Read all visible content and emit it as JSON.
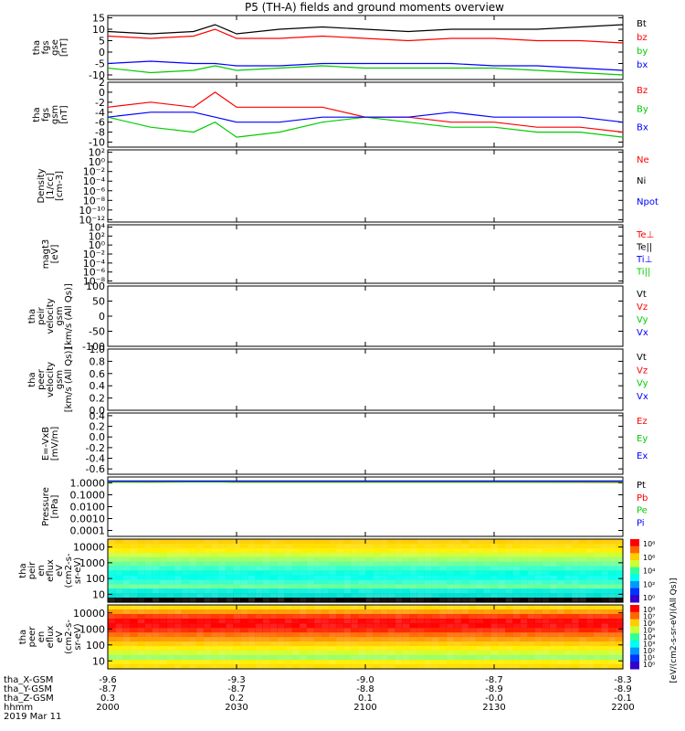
{
  "title": "P5 (TH-A) fields and ground moments overview",
  "colors": {
    "black": "#000000",
    "red": "#ff0000",
    "green": "#00cc00",
    "blue": "#0000ff"
  },
  "chart_data": [
    {
      "type": "line",
      "panel": "fgs_gse",
      "ylabel": [
        "tha",
        "fgs",
        "gse",
        "[nT]"
      ],
      "ylim": [
        -12,
        16
      ],
      "yticks": [
        "15",
        "10",
        "5",
        "0",
        "-5",
        "-10"
      ],
      "ytick_values": [
        15,
        10,
        5,
        0,
        -5,
        -10
      ],
      "series": [
        {
          "name": "Bt",
          "color": "#000000",
          "x": [
            2000,
            2010,
            2020,
            2025,
            2030,
            2040,
            2050,
            2100,
            2110,
            2120,
            2130,
            2140,
            2150,
            2200
          ],
          "values": [
            9,
            8,
            9,
            12,
            8,
            10,
            11,
            10,
            9,
            10,
            10,
            10,
            11,
            12
          ]
        },
        {
          "name": "bz",
          "color": "#ff0000",
          "x": [
            2000,
            2010,
            2020,
            2025,
            2030,
            2040,
            2050,
            2100,
            2110,
            2120,
            2130,
            2140,
            2150,
            2200
          ],
          "values": [
            7,
            6,
            7,
            10,
            6,
            6,
            7,
            6,
            5,
            6,
            6,
            5,
            5,
            4
          ]
        },
        {
          "name": "by",
          "color": "#00cc00",
          "x": [
            2000,
            2010,
            2020,
            2025,
            2030,
            2040,
            2050,
            2100,
            2110,
            2120,
            2130,
            2140,
            2150,
            2200
          ],
          "values": [
            -7,
            -9,
            -8,
            -6,
            -8,
            -7,
            -6,
            -7,
            -7,
            -7,
            -7,
            -8,
            -9,
            -10
          ]
        },
        {
          "name": "bx",
          "color": "#0000ff",
          "x": [
            2000,
            2010,
            2020,
            2025,
            2030,
            2040,
            2050,
            2100,
            2110,
            2120,
            2130,
            2140,
            2150,
            2200
          ],
          "values": [
            -5,
            -4,
            -5,
            -5,
            -6,
            -6,
            -5,
            -5,
            -5,
            -5,
            -6,
            -6,
            -7,
            -8
          ]
        }
      ]
    },
    {
      "type": "line",
      "panel": "fgs_gsm",
      "ylabel": [
        "tha",
        "fgs",
        "gsm",
        "[nT]"
      ],
      "ylim": [
        -11,
        2
      ],
      "yticks": [
        "2",
        "0",
        "-2",
        "-4",
        "-6",
        "-8",
        "-10"
      ],
      "ytick_values": [
        2,
        0,
        -2,
        -4,
        -6,
        -8,
        -10
      ],
      "series": [
        {
          "name": "Bz",
          "color": "#ff0000",
          "x": [
            2000,
            2010,
            2020,
            2025,
            2030,
            2040,
            2050,
            2100,
            2110,
            2120,
            2130,
            2140,
            2150,
            2200
          ],
          "values": [
            -3,
            -2,
            -3,
            0,
            -3,
            -3,
            -3,
            -5,
            -5,
            -6,
            -6,
            -7,
            -7,
            -8
          ]
        },
        {
          "name": "By",
          "color": "#00cc00",
          "x": [
            2000,
            2010,
            2020,
            2025,
            2030,
            2040,
            2050,
            2100,
            2110,
            2120,
            2130,
            2140,
            2150,
            2200
          ],
          "values": [
            -5,
            -7,
            -8,
            -6,
            -9,
            -8,
            -6,
            -5,
            -6,
            -7,
            -7,
            -8,
            -8,
            -9
          ]
        },
        {
          "name": "Bx",
          "color": "#0000ff",
          "x": [
            2000,
            2010,
            2020,
            2025,
            2030,
            2040,
            2050,
            2100,
            2110,
            2120,
            2130,
            2140,
            2150,
            2200
          ],
          "values": [
            -5,
            -4,
            -4,
            -5,
            -6,
            -6,
            -5,
            -5,
            -5,
            -4,
            -5,
            -5,
            -5,
            -6
          ]
        }
      ]
    },
    {
      "type": "line",
      "panel": "density",
      "ylabel": [
        "Density",
        "[1/cc]",
        "[cm-3]"
      ],
      "yscale": "log",
      "yticks": [
        "10²",
        "10⁰",
        "10⁻²",
        "10⁻⁴",
        "10⁻⁶",
        "10⁻⁸",
        "10⁻¹⁰",
        "10⁻¹²"
      ],
      "ytick_values": [
        2,
        0,
        -2,
        -4,
        -6,
        -8,
        -10,
        -12
      ],
      "legend": [
        {
          "name": "Ne",
          "color": "#ff0000"
        },
        {
          "name": "Ni",
          "color": "#000000"
        },
        {
          "name": "Npot",
          "color": "#0000ff"
        }
      ]
    },
    {
      "type": "line",
      "panel": "temperature",
      "ylabel": [
        "magt3",
        "[eV]"
      ],
      "yscale": "log",
      "yticks": [
        "10⁴",
        "10²",
        "10⁰",
        "10⁻²",
        "10⁻⁴",
        "10⁻⁶",
        "10⁻⁸"
      ],
      "ytick_values": [
        4,
        2,
        0,
        -2,
        -4,
        -6,
        -8
      ],
      "legend": [
        {
          "name": "Te⊥",
          "color": "#ff0000"
        },
        {
          "name": "Te||",
          "color": "#000000"
        },
        {
          "name": "Ti⊥",
          "color": "#0000ff"
        },
        {
          "name": "Ti||",
          "color": "#00cc00"
        }
      ]
    },
    {
      "type": "line",
      "panel": "peir_velocity",
      "ylabel": [
        "tha",
        "peir",
        "velocity",
        "gsm",
        "[km/s (All Qs)]"
      ],
      "ylim": [
        -100,
        100
      ],
      "yticks": [
        "100",
        "50",
        "0",
        "-50",
        "-100"
      ],
      "ytick_values": [
        100,
        50,
        0,
        -50,
        -100
      ],
      "series": [
        {
          "name": "Vt",
          "color": "#000000"
        },
        {
          "name": "Vz",
          "color": "#ff0000"
        },
        {
          "name": "Vy",
          "color": "#00cc00"
        },
        {
          "name": "Vx",
          "color": "#0000ff"
        }
      ]
    },
    {
      "type": "line",
      "panel": "peer_velocity",
      "ylabel": [
        "tha",
        "peer",
        "velocity",
        "gsm",
        "[km/s (All Qs)]"
      ],
      "ylim": [
        0,
        1
      ],
      "yticks": [
        "1.0",
        "0.8",
        "0.6",
        "0.4",
        "0.2",
        "0.0"
      ],
      "ytick_values": [
        1,
        0.8,
        0.6,
        0.4,
        0.2,
        0
      ],
      "series": [
        {
          "name": "Vt",
          "color": "#000000"
        },
        {
          "name": "Vz",
          "color": "#ff0000"
        },
        {
          "name": "Vy",
          "color": "#00cc00"
        },
        {
          "name": "Vx",
          "color": "#0000ff"
        }
      ]
    },
    {
      "type": "line",
      "panel": "efield",
      "ylabel": [
        "E=-VxB",
        "[mV/m]"
      ],
      "ylim": [
        -0.7,
        0.45
      ],
      "yticks": [
        "0.4",
        "0.2",
        "0.0",
        "-0.2",
        "-0.4",
        "-0.6"
      ],
      "ytick_values": [
        0.4,
        0.2,
        0,
        -0.2,
        -0.4,
        -0.6
      ],
      "series": [
        {
          "name": "Ez",
          "color": "#ff0000"
        },
        {
          "name": "Ey",
          "color": "#00cc00"
        },
        {
          "name": "Ex",
          "color": "#0000ff"
        }
      ]
    },
    {
      "type": "line",
      "panel": "pressure",
      "ylabel": [
        "Pressure",
        "[nPa]"
      ],
      "yscale": "log",
      "yticks": [
        "1.0000",
        "0.1000",
        "0.0100",
        "0.0010",
        "0.0001"
      ],
      "ytick_values": [
        0,
        -1,
        -2,
        -3,
        -4
      ],
      "series": [
        {
          "name": "Pt",
          "color": "#000000",
          "x": [
            2000,
            2200
          ],
          "values": [
            0.15,
            0.15
          ]
        },
        {
          "name": "Pb",
          "color": "#ff0000",
          "x": [
            2000,
            2010,
            2025,
            2030,
            2100,
            2130,
            2200
          ],
          "values": [
            0.08,
            0.07,
            0.1,
            0.06,
            0.06,
            0.06,
            0.05
          ]
        },
        {
          "name": "Pe",
          "color": "#00cc00",
          "x": [
            2000,
            2200
          ],
          "values": [
            0.08,
            0.08
          ]
        },
        {
          "name": "Pi",
          "color": "#0000ff",
          "x": [
            2000,
            2200
          ],
          "values": [
            0.15,
            0.15
          ]
        }
      ]
    },
    {
      "type": "heatmap",
      "panel": "peir_en_eflux",
      "ylabel": [
        "tha",
        "peir",
        "en",
        "eflux",
        "eV",
        "(cm2-s-",
        "sr-eV)"
      ],
      "yscale": "log",
      "yticks": [
        "10000",
        "1000",
        "100",
        "10"
      ],
      "ytick_values": [
        4,
        3,
        2,
        1
      ],
      "colorbar_ticks": [
        "10⁸",
        "10⁶",
        "10⁴",
        "10²",
        "10⁰"
      ]
    },
    {
      "type": "heatmap",
      "panel": "peer_en_eflux",
      "ylabel": [
        "tha",
        "peer",
        "en",
        "eflux",
        "eV",
        "(cm2-s-",
        "sr-eV)"
      ],
      "yscale": "log",
      "yticks": [
        "10000",
        "1000",
        "100",
        "10"
      ],
      "ytick_values": [
        4,
        3,
        2,
        1
      ],
      "colorbar_ticks": [
        "10⁸",
        "10⁷",
        "10⁶",
        "10⁵",
        "10⁴",
        "10³",
        "10²",
        "10¹",
        "10⁰"
      ],
      "colorbar_label": "[eV/(cm2-s-sr-eV)(All Qs)]"
    }
  ],
  "xaxis": {
    "rows": [
      {
        "label": "tha_X-GSM",
        "values": [
          "-9.6",
          "-9.3",
          "-9.0",
          "-8.7",
          "-8.3"
        ]
      },
      {
        "label": "tha_Y-GSM",
        "values": [
          "-8.7",
          "-8.7",
          "-8.8",
          "-8.9",
          "-8.9"
        ]
      },
      {
        "label": "tha_Z-GSM",
        "values": [
          "0.3",
          "0.2",
          "0.1",
          "-0.0",
          "-0.1"
        ]
      },
      {
        "label": "hhmm",
        "values": [
          "2000",
          "2030",
          "2100",
          "2130",
          "2200"
        ]
      }
    ],
    "date": "2019 Mar 11",
    "range": [
      2000,
      2200
    ]
  }
}
